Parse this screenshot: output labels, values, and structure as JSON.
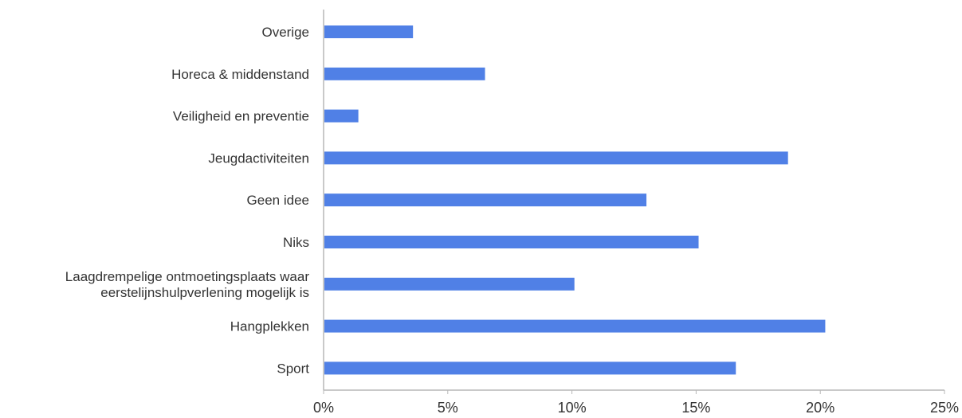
{
  "chart_data": {
    "type": "bar",
    "orientation": "horizontal",
    "title": "",
    "xlabel": "",
    "ylabel": "",
    "categories": [
      [
        "Overige"
      ],
      [
        "Horeca & middenstand"
      ],
      [
        "Veiligheid en preventie"
      ],
      [
        "Jeugdactiviteiten"
      ],
      [
        "Geen idee"
      ],
      [
        "Niks"
      ],
      [
        "Laagdrempelige ontmoetingsplaats waar",
        "eerstelijnshulpverlening mogelijk is"
      ],
      [
        "Hangplekken"
      ],
      [
        "Sport"
      ]
    ],
    "values": [
      3.6,
      6.5,
      1.4,
      18.7,
      13.0,
      15.1,
      10.1,
      20.2,
      16.6
    ],
    "xlim": [
      0,
      25
    ],
    "x_ticks": [
      0,
      5,
      10,
      15,
      20,
      25
    ],
    "x_tick_labels": [
      "0%",
      "5%",
      "10%",
      "15%",
      "20%",
      "25%"
    ],
    "grid": false,
    "legend": "none",
    "bar_color": "#5080e6",
    "axis_color": "#b7b7b7",
    "text_color": "#333333"
  }
}
